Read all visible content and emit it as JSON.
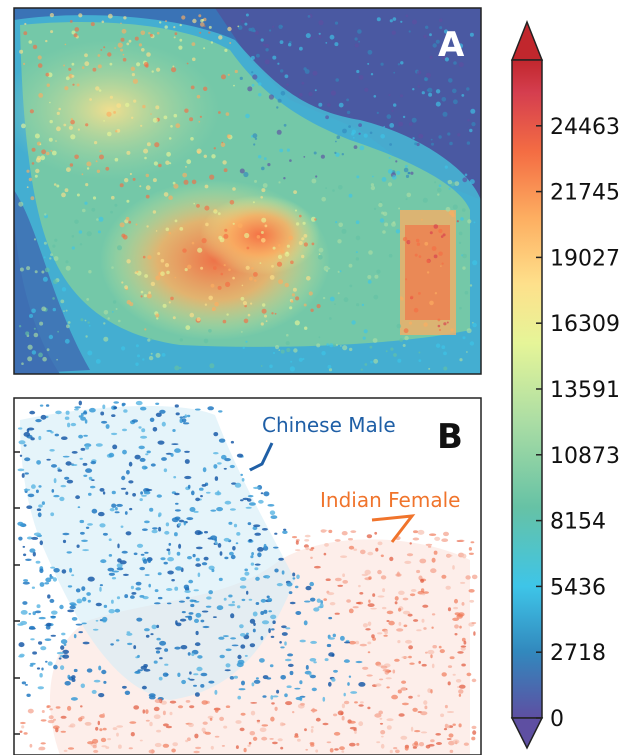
{
  "chart_data": {
    "type": "heatmap",
    "colorbar": {
      "ticks": [
        0,
        2718,
        5436,
        8154,
        10873,
        13591,
        16309,
        19027,
        21745,
        24463
      ],
      "range": [
        0,
        27181
      ],
      "colormap": [
        "#5e4fa2",
        "#3288bd",
        "#3ec5e8",
        "#66c2a5",
        "#abdda4",
        "#e6f598",
        "#fee08b",
        "#fdae61",
        "#f46d43",
        "#d53e4f",
        "#c1272d"
      ],
      "extend": "both"
    },
    "panels": [
      {
        "label": "A",
        "kind": "intensity heatmap"
      },
      {
        "label": "B",
        "kind": "classification map",
        "annotations": [
          {
            "text": "Chinese Male",
            "color": "#1f5fa6"
          },
          {
            "text": "Indian Female",
            "color": "#f0742c"
          }
        ]
      }
    ]
  }
}
